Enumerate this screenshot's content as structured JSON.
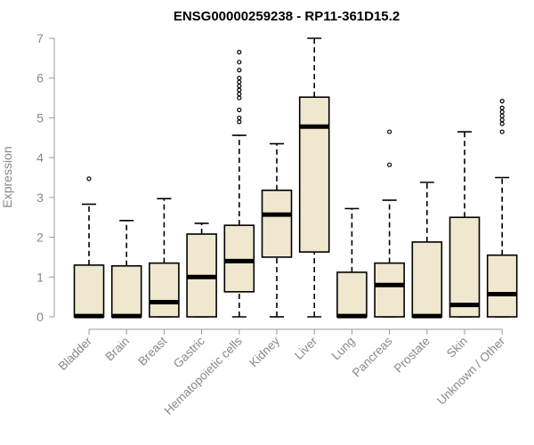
{
  "chart_data": {
    "type": "box",
    "title": "ENSG00000259238 - RP11-361D15.2",
    "xlabel": "",
    "ylabel": "Expression",
    "ylim": [
      0,
      7
    ],
    "yticks": [
      "0",
      "1",
      "2",
      "3",
      "4",
      "5",
      "6",
      "7"
    ],
    "grid": false,
    "legend": "none",
    "box_fill": "#efe8cf",
    "categories": [
      "Bladder",
      "Brain",
      "Breast",
      "Gastric",
      "Hematopoietic cells",
      "Kidney",
      "Liver",
      "Lung",
      "Pancreas",
      "Prostate",
      "Skin",
      "Unknown / Other"
    ],
    "boxes": [
      {
        "min": 0,
        "q1": 0,
        "median": 0.02,
        "q3": 1.3,
        "max": 2.83,
        "outliers": [
          3.47
        ]
      },
      {
        "min": 0,
        "q1": 0,
        "median": 0.02,
        "q3": 1.28,
        "max": 2.42,
        "outliers": []
      },
      {
        "min": 0,
        "q1": 0,
        "median": 0.37,
        "q3": 1.35,
        "max": 2.97,
        "outliers": []
      },
      {
        "min": 0,
        "q1": 0,
        "median": 1.0,
        "q3": 2.08,
        "max": 2.35,
        "outliers": []
      },
      {
        "min": 0,
        "q1": 0.63,
        "median": 1.4,
        "q3": 2.3,
        "max": 4.56,
        "outliers": [
          4.9,
          5.0,
          5.2,
          5.5,
          5.6,
          5.7,
          5.8,
          5.9,
          6.0,
          6.2,
          6.4,
          6.65
        ]
      },
      {
        "min": 0,
        "q1": 1.5,
        "median": 2.57,
        "q3": 3.18,
        "max": 4.35,
        "outliers": []
      },
      {
        "min": 0,
        "q1": 1.63,
        "median": 4.78,
        "q3": 5.52,
        "max": 7.0,
        "outliers": []
      },
      {
        "min": 0,
        "q1": 0,
        "median": 0.02,
        "q3": 1.12,
        "max": 2.72,
        "outliers": []
      },
      {
        "min": 0,
        "q1": 0,
        "median": 0.8,
        "q3": 1.35,
        "max": 2.93,
        "outliers": [
          3.82,
          4.65
        ]
      },
      {
        "min": 0,
        "q1": 0,
        "median": 0.02,
        "q3": 1.88,
        "max": 3.38,
        "outliers": []
      },
      {
        "min": 0,
        "q1": 0,
        "median": 0.3,
        "q3": 2.5,
        "max": 4.65,
        "outliers": []
      },
      {
        "min": 0,
        "q1": 0,
        "median": 0.57,
        "q3": 1.55,
        "max": 3.5,
        "outliers": [
          4.65,
          4.85,
          4.95,
          5.05,
          5.15,
          5.25,
          5.42
        ]
      }
    ]
  }
}
